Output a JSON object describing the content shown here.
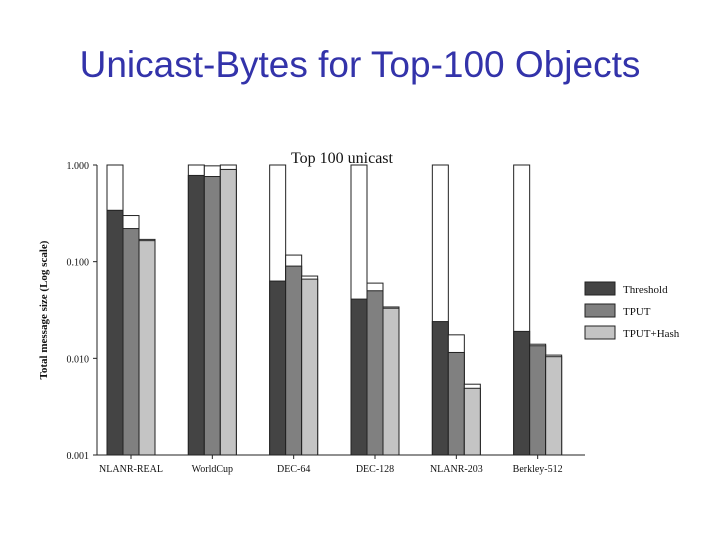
{
  "slide": {
    "title": "Unicast-Bytes for Top-100 Objects"
  },
  "chart_data": {
    "type": "bar",
    "title": "Top 100 unicast",
    "ylabel": "Total message size (Log scale)",
    "xlabel": "",
    "yscale": "log",
    "ylim": [
      0.001,
      1.0
    ],
    "ytick_labels": [
      "1.000",
      "0.100",
      "0.010",
      "0.001"
    ],
    "ytick_values": [
      1.0,
      0.1,
      0.01,
      0.001
    ],
    "categories": [
      "NLANR-REAL",
      "WorldCup",
      "DEC-64",
      "DEC-128",
      "NLANR-203",
      "Berkley-512"
    ],
    "legend_position": "right",
    "series": [
      {
        "name": "Threshold",
        "color": "#444444",
        "values": [
          0.34,
          0.78,
          0.063,
          0.041,
          0.024,
          0.019
        ],
        "outline_top": [
          1.0,
          1.0,
          1.0,
          1.0,
          1.0,
          1.0
        ]
      },
      {
        "name": "TPUT",
        "color": "#808080",
        "values": [
          0.22,
          0.76,
          0.09,
          0.05,
          0.0115,
          0.0135
        ],
        "outline_top": [
          0.3,
          0.98,
          0.117,
          0.06,
          0.0175,
          0.014
        ]
      },
      {
        "name": "TPUT+Hash",
        "color": "#c4c4c4",
        "values": [
          0.165,
          0.9,
          0.066,
          0.033,
          0.0049,
          0.0104
        ],
        "outline_top": [
          0.17,
          1.0,
          0.071,
          0.034,
          0.0054,
          0.0108
        ]
      }
    ]
  }
}
